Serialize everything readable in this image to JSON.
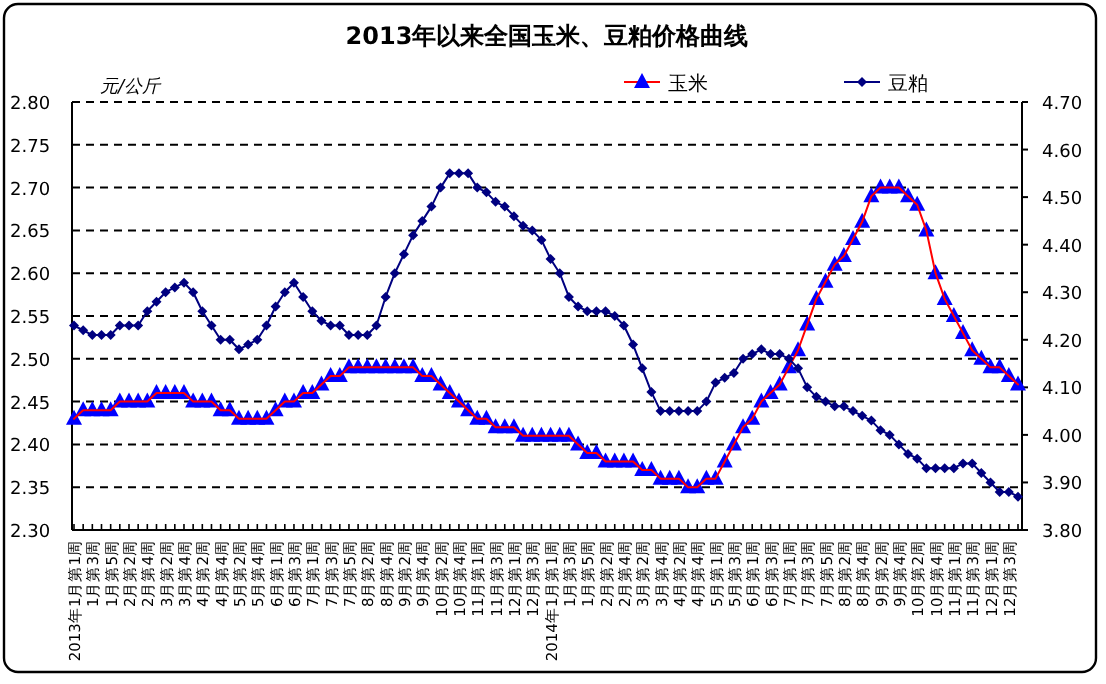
{
  "chart_data": {
    "type": "line",
    "title": "2013年以来全国玉米、豆粕价格曲线",
    "ylabel": "元/公斤",
    "categories": [
      "2013年1月第1周",
      null,
      "1月第3周",
      null,
      "1月第5周",
      null,
      "2月第2周",
      null,
      "2月第4周",
      null,
      "3月第2周",
      null,
      "3月第4周",
      null,
      "4月第2周",
      null,
      "4月第4周",
      null,
      "5月第2周",
      null,
      "5月第4周",
      null,
      "6月第1周",
      null,
      "6月第3周",
      null,
      "7月第1周",
      null,
      "7月第3周",
      null,
      "7月第5周",
      null,
      "8月第2周",
      null,
      "8月第4周",
      null,
      "9月第2周",
      null,
      "9月第4周",
      null,
      "10月第2周",
      null,
      "10月第4周",
      null,
      "11月第1周",
      null,
      "11月第3周",
      null,
      "12月第1周",
      null,
      "12月第3周",
      null,
      "2014年1月第1周",
      null,
      "1月第3周",
      null,
      "1月第5周",
      null,
      "2月第2周",
      null,
      "2月第4周",
      null,
      "3月第2周",
      null,
      "3月第4周",
      null,
      "4月第2周",
      null,
      "4月第4周",
      null,
      "5月第1周",
      null,
      "5月第3周",
      null,
      "6月第1周",
      null,
      "6月第3周",
      null,
      "7月第1周",
      null,
      "7月第3周",
      null,
      "7月第5周",
      null,
      "8月第2周",
      null,
      "8月第4周",
      null,
      "9月第2周",
      null,
      "9月第4周",
      null,
      "10月第2周",
      null,
      "10月第4周",
      null,
      "11月第1周",
      null,
      "11月第3周",
      null,
      "12月第1周",
      null,
      "12月第3周",
      null
    ],
    "series": [
      {
        "name": "玉米",
        "color": "#ff0000",
        "colors": [
          "#0000ff",
          "#0000ff",
          "#0000ff",
          "#0000ff",
          "#0000ff",
          "#0000ff",
          "#0000ff",
          "#0000ff",
          "#0000ff",
          "#0000ff",
          "#0000ff",
          "#0000ff",
          "#0000ff",
          "#0000ff",
          "#0000ff",
          "#0000ff",
          "#0000ff",
          "#0000ff",
          "#0000ff",
          "#0000ff",
          "#0000ff",
          "#0000ff",
          "#0000ff",
          "#0000ff",
          "#0000ff",
          "#0000ff",
          "#0000ff",
          "#0000ff",
          "#0000ff",
          "#0000ff",
          "#0000ff",
          "#0000ff",
          "#0000ff",
          "#0000ff",
          "#0000ff",
          "#0000ff",
          "#0000ff",
          "#0000ff",
          "#0000ff",
          "#0000ff",
          "#0000ff",
          "#0000ff",
          "#0000ff",
          "#0000ff",
          "#0000ff",
          "#0000ff",
          "#0000ff",
          "#0000ff",
          "#0000ff",
          "#0000ff",
          "#0000ff",
          "#0000ff",
          "#0000ff",
          "#0000ff",
          "#0000ff",
          "#0000ff",
          "#0000ff",
          "#0000ff",
          "#0000ff",
          "#0000ff",
          "#0000ff",
          "#0000ff",
          "#0000ff",
          "#0000ff",
          "#0000ff",
          "#0000ff",
          "#0000ff",
          "#0000ff",
          "#0000ff",
          "#0000ff",
          "#0000ff",
          "#0000ff",
          "#0000ff",
          "#0000ff",
          "#0000ff",
          "#0000ff",
          "#0000ff",
          "#0000ff",
          "#0000ff",
          "#0000ff",
          "#0000ff",
          "#0000ff",
          "#0000ff",
          "#0000ff",
          "#0000ff",
          "#0000ff",
          "#0000ff",
          "#0000ff",
          "#0000ff",
          "#0000ff",
          "#0000ff",
          "#0000ff",
          "#0000ff",
          "#0000ff",
          "#0000ff",
          "#0000ff",
          "#0000ff",
          "#0000ff",
          "#0000ff",
          "#0000ff",
          "#0000ff",
          "#0000ff",
          "#0000ff",
          "#0000ff"
        ],
        "marker": "triangle",
        "values": [
          2.43,
          2.44,
          2.44,
          2.44,
          2.44,
          2.45,
          2.45,
          2.45,
          2.45,
          2.46,
          2.46,
          2.46,
          2.46,
          2.45,
          2.45,
          2.45,
          2.44,
          2.44,
          2.43,
          2.43,
          2.43,
          2.43,
          2.44,
          2.45,
          2.45,
          2.46,
          2.46,
          2.47,
          2.48,
          2.48,
          2.49,
          2.49,
          2.49,
          2.49,
          2.49,
          2.49,
          2.49,
          2.49,
          2.48,
          2.48,
          2.47,
          2.46,
          2.45,
          2.44,
          2.43,
          2.43,
          2.42,
          2.42,
          2.42,
          2.41,
          2.41,
          2.41,
          2.41,
          2.41,
          2.41,
          2.4,
          2.39,
          2.39,
          2.38,
          2.38,
          2.38,
          2.38,
          2.37,
          2.37,
          2.36,
          2.36,
          2.36,
          2.35,
          2.35,
          2.36,
          2.36,
          2.38,
          2.4,
          2.42,
          2.43,
          2.45,
          2.46,
          2.47,
          2.49,
          2.51,
          2.54,
          2.57,
          2.59,
          2.61,
          2.62,
          2.64,
          2.66,
          2.69,
          2.7,
          2.7,
          2.7,
          2.69,
          2.68,
          2.65,
          2.6,
          2.57,
          2.55,
          2.53,
          2.51,
          2.5,
          2.49,
          2.49,
          2.48,
          2.47
        ]
      },
      {
        "name": "豆粕",
        "color": "#000080",
        "marker": "diamond",
        "axis": "y2",
        "values": [
          4.23,
          4.22,
          4.21,
          4.21,
          4.21,
          4.23,
          4.23,
          4.23,
          4.26,
          4.28,
          4.3,
          4.31,
          4.32,
          4.3,
          4.26,
          4.23,
          4.2,
          4.2,
          4.18,
          4.19,
          4.2,
          4.23,
          4.27,
          4.3,
          4.32,
          4.29,
          4.26,
          4.24,
          4.23,
          4.23,
          4.21,
          4.21,
          4.21,
          4.23,
          4.29,
          4.34,
          4.38,
          4.42,
          4.45,
          4.48,
          4.52,
          4.55,
          4.55,
          4.55,
          4.52,
          4.51,
          4.49,
          4.48,
          4.46,
          4.44,
          4.43,
          4.41,
          4.37,
          4.34,
          4.29,
          4.27,
          4.26,
          4.26,
          4.26,
          4.25,
          4.23,
          4.19,
          4.14,
          4.09,
          4.05,
          4.05,
          4.05,
          4.05,
          4.05,
          4.07,
          4.11,
          4.12,
          4.13,
          4.16,
          4.17,
          4.18,
          4.17,
          4.17,
          4.16,
          4.14,
          4.1,
          4.08,
          4.07,
          4.06,
          4.06,
          4.05,
          4.04,
          4.03,
          4.01,
          4.0,
          3.98,
          3.96,
          3.95,
          3.93,
          3.93,
          3.93,
          3.93,
          3.94,
          3.94,
          3.92,
          3.9,
          3.88,
          3.88,
          3.87
        ]
      }
    ],
    "ylim": [
      2.3,
      2.8
    ],
    "yticks": [
      {
        "value": 2.3,
        "label": "2.30"
      },
      {
        "value": 2.35,
        "label": "2.35"
      },
      {
        "value": 2.4,
        "label": "2.40"
      },
      {
        "value": 2.45,
        "label": "2.45"
      },
      {
        "value": 2.5,
        "label": "2.50"
      },
      {
        "value": 2.55,
        "label": "2.55"
      },
      {
        "value": 2.6,
        "label": "2.60"
      },
      {
        "value": 2.65,
        "label": "2.65"
      },
      {
        "value": 2.7,
        "label": "2.70"
      },
      {
        "value": 2.75,
        "label": "2.75"
      },
      {
        "value": 2.8,
        "label": "2.80"
      }
    ],
    "y2lim": [
      3.8,
      4.7
    ],
    "y2ticks": [
      {
        "value": 3.8,
        "label": "3.80"
      },
      {
        "value": 3.9,
        "label": "3.90"
      },
      {
        "value": 4.0,
        "label": "4.00"
      },
      {
        "value": 4.1,
        "label": "4.10"
      },
      {
        "value": 4.2,
        "label": "4.20"
      },
      {
        "value": 4.3,
        "label": "4.30"
      },
      {
        "value": 4.4,
        "label": "4.40"
      },
      {
        "value": 4.5,
        "label": "4.50"
      },
      {
        "value": 4.6,
        "label": "4.60"
      },
      {
        "value": 4.7,
        "label": "4.70"
      }
    ],
    "grid": "y",
    "legend": "top right",
    "line_style": "solid"
  }
}
